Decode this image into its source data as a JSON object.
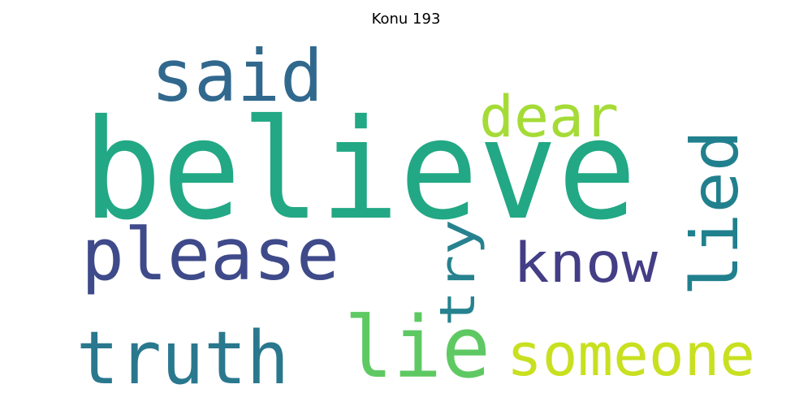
{
  "title": "Konu 193",
  "words": [
    {
      "text": "believe",
      "color": "#22a884"
    },
    {
      "text": "said",
      "color": "#31688e"
    },
    {
      "text": "dear",
      "color": "#a5db36"
    },
    {
      "text": "lied",
      "color": "#21808d"
    },
    {
      "text": "please",
      "color": "#3e4a89"
    },
    {
      "text": "try",
      "color": "#26828e"
    },
    {
      "text": "know",
      "color": "#433e85"
    },
    {
      "text": "truth",
      "color": "#2a788e"
    },
    {
      "text": "lie",
      "color": "#5ec962"
    },
    {
      "text": "someone",
      "color": "#c8e020"
    }
  ]
}
